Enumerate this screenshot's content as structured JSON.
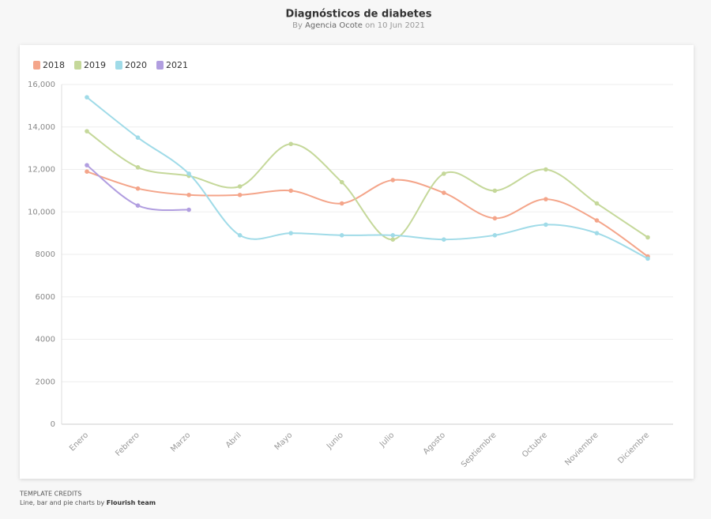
{
  "header": {
    "title": "Diagnósticos de diabetes",
    "byline": {
      "prefix": "By",
      "author": "Agencia Ocote",
      "joiner": "on",
      "date": "10 Jun 2021"
    }
  },
  "chart_data": {
    "type": "line",
    "categories": [
      "Enero",
      "Febrero",
      "Marzo",
      "Abril",
      "Mayo",
      "Junio",
      "Julio",
      "Agosto",
      "Septiembre",
      "Octubre",
      "Noviembre",
      "Diciembre"
    ],
    "series": [
      {
        "name": "2018",
        "color": "#f4a58a",
        "values": [
          11900,
          11100,
          10800,
          10800,
          11000,
          10400,
          11500,
          10900,
          9700,
          10600,
          9600,
          7900
        ]
      },
      {
        "name": "2019",
        "color": "#c5d89a",
        "values": [
          13800,
          12100,
          11700,
          11200,
          13200,
          11400,
          8700,
          11800,
          11000,
          12000,
          10400,
          8800
        ]
      },
      {
        "name": "2020",
        "color": "#a0dbe8",
        "values": [
          15400,
          13500,
          11800,
          8900,
          9000,
          8900,
          8900,
          8700,
          8900,
          9400,
          9000,
          7800
        ]
      },
      {
        "name": "2021",
        "color": "#b19ee0",
        "values": [
          12200,
          10300,
          10100,
          null,
          null,
          null,
          null,
          null,
          null,
          null,
          null,
          null
        ]
      }
    ],
    "ylim": [
      0,
      16000
    ],
    "yticks": [
      0,
      2000,
      4000,
      6000,
      8000,
      {
        "value": 10000,
        "label": "10,000"
      },
      {
        "value": 12000,
        "label": "12,000"
      },
      {
        "value": 14000,
        "label": "14,000"
      },
      {
        "value": 16000,
        "label": "16,000"
      }
    ],
    "grid": true,
    "legend": "top-left",
    "curve": "smooth"
  },
  "credits": {
    "heading": "TEMPLATE CREDITS",
    "text": "Line, bar and pie charts by",
    "author": "Flourish team"
  }
}
